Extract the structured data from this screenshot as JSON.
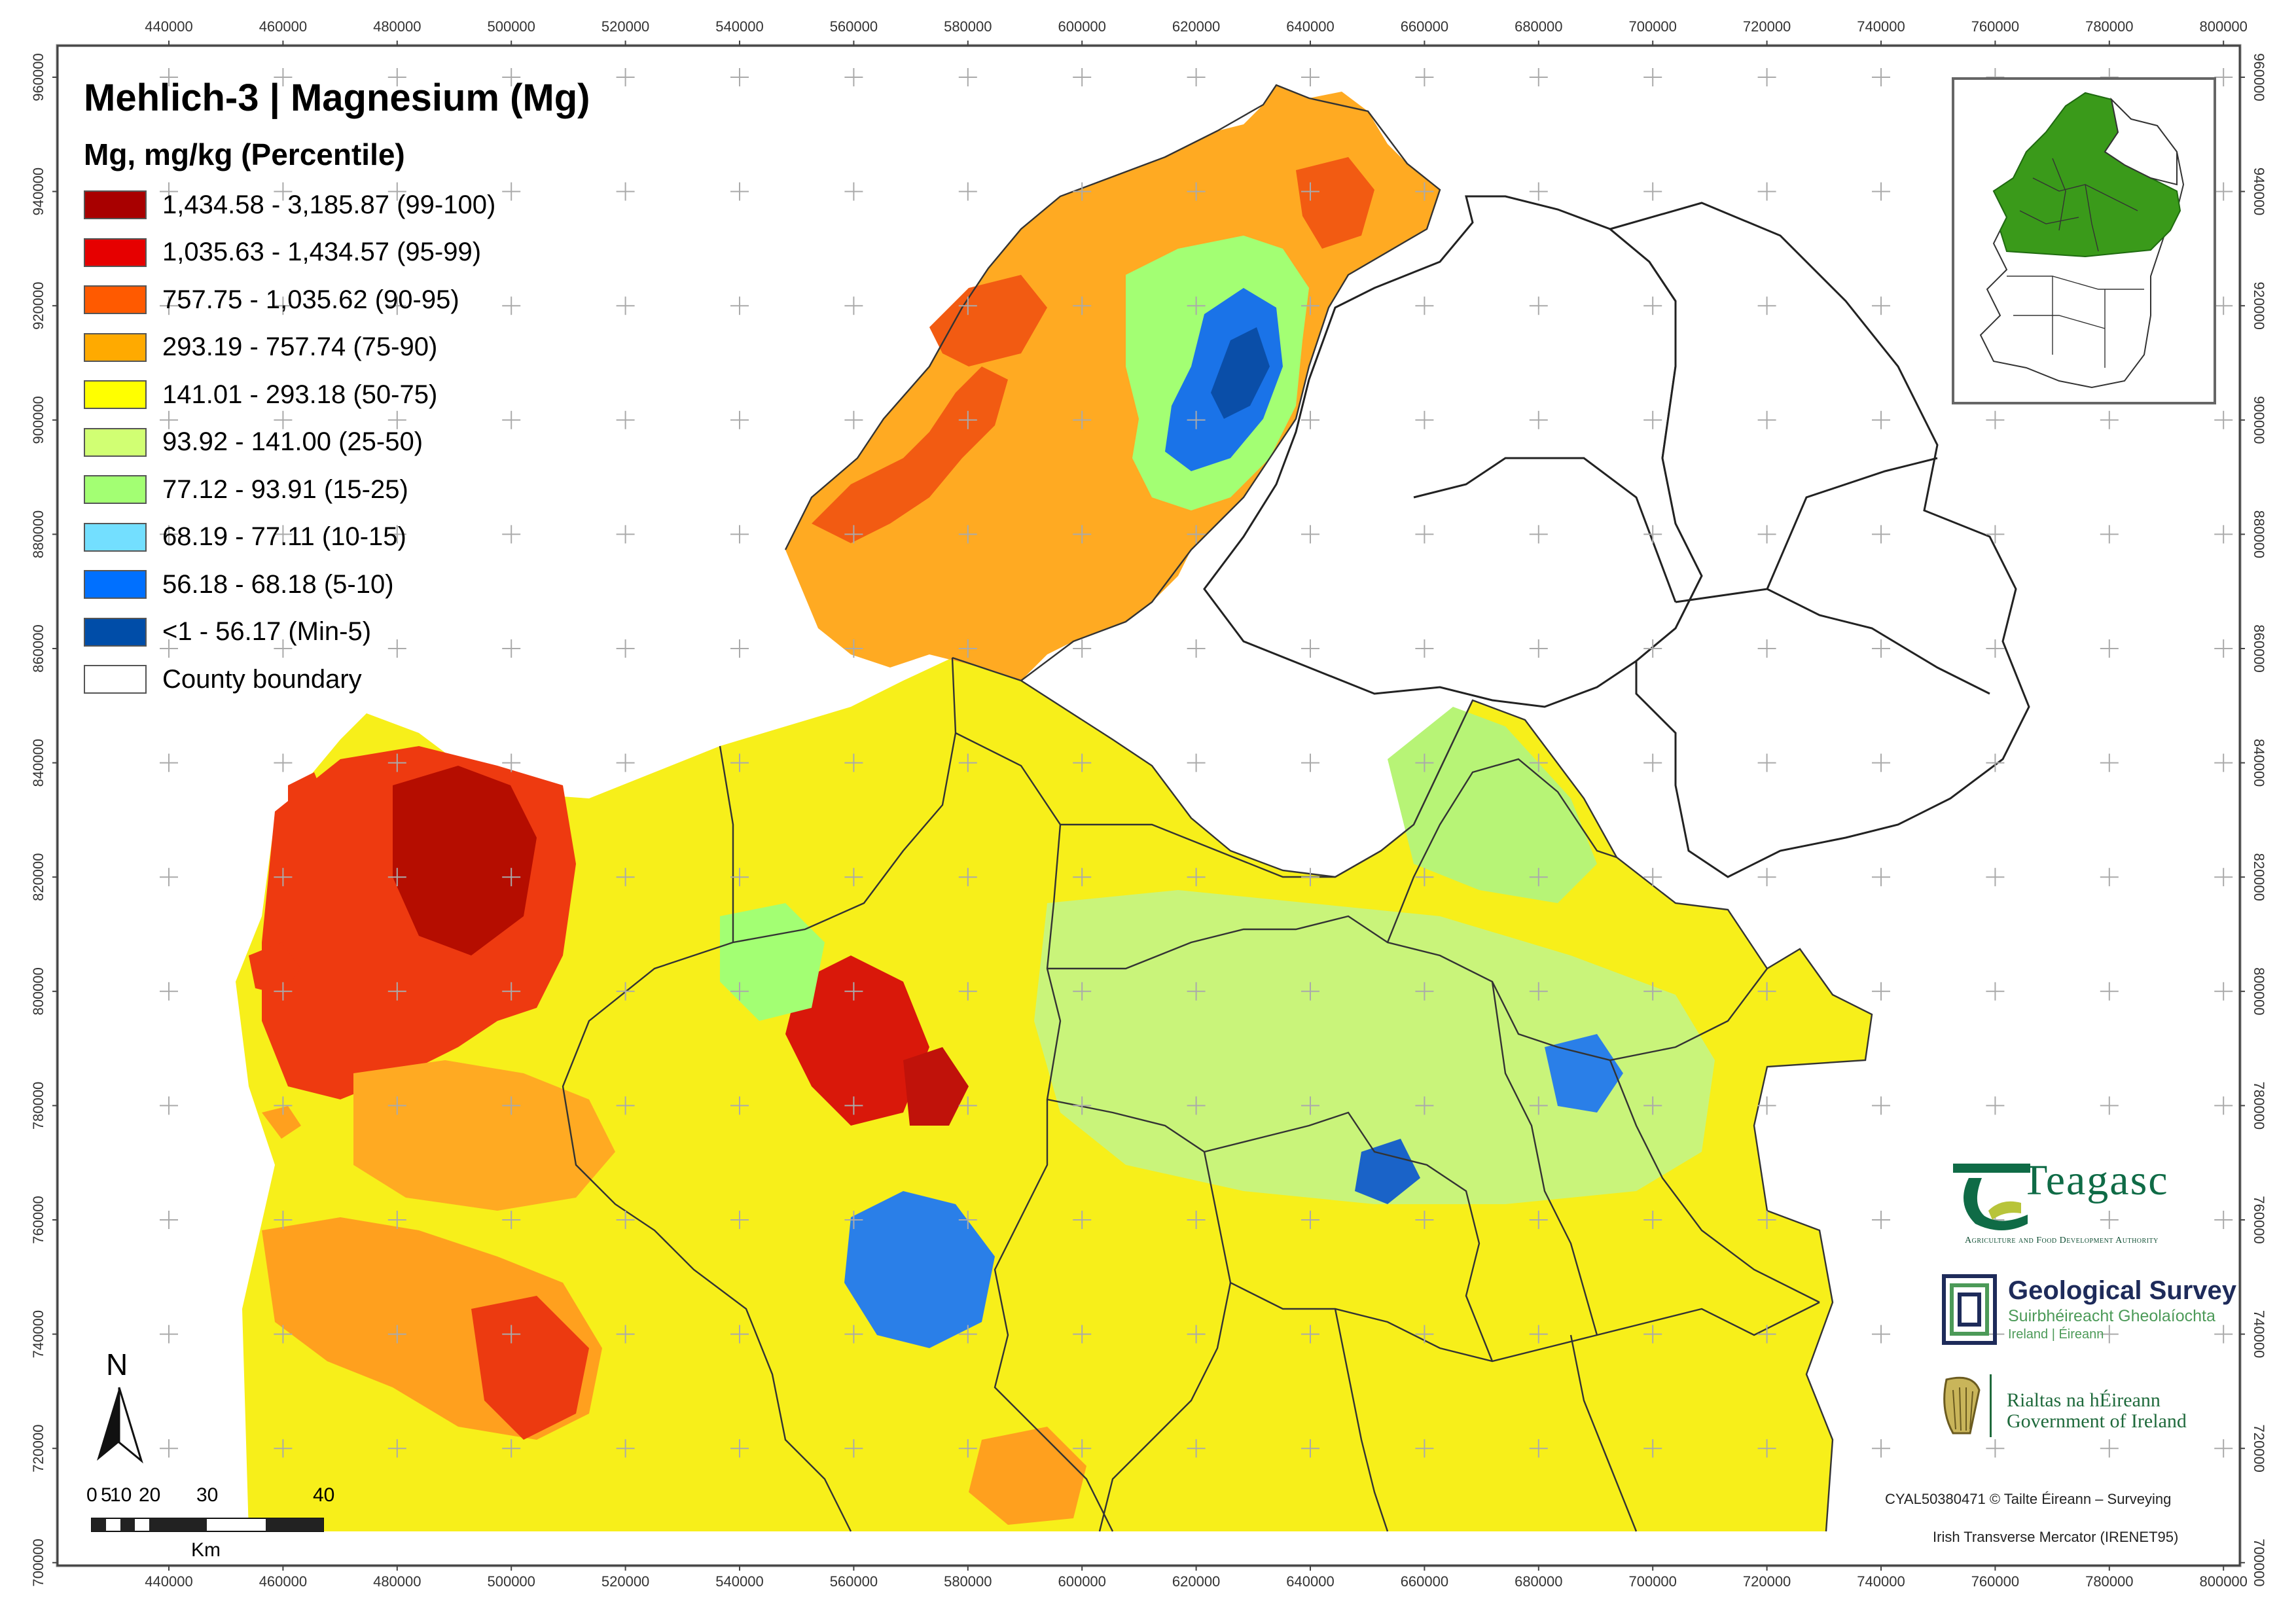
{
  "map": {
    "title": "Mehlich-3 | Magnesium (Mg)",
    "subtitle": "Mg, mg/kg (Percentile)",
    "legend": [
      {
        "label": "1,434.58 - 3,185.87 (99-100)",
        "color": "#a80000"
      },
      {
        "label": "1,035.63 - 1,434.57 (95-99)",
        "color": "#e60000"
      },
      {
        "label": "757.75 - 1,035.62 (90-95)",
        "color": "#ff5a00"
      },
      {
        "label": "293.19 - 757.74 (75-90)",
        "color": "#ffaa00"
      },
      {
        "label": "141.01 - 293.18 (50-75)",
        "color": "#ffff00"
      },
      {
        "label": "93.92 - 141.00 (25-50)",
        "color": "#d1ff73"
      },
      {
        "label": "77.12 - 93.91 (15-25)",
        "color": "#a3ff73"
      },
      {
        "label": "68.19 - 77.11 (10-15)",
        "color": "#73dfff"
      },
      {
        "label": "56.18 - 68.18 (5-10)",
        "color": "#0070ff"
      },
      {
        "label": "<1 - 56.17 (Min-5)",
        "color": "#004da8"
      },
      {
        "label": "County boundary",
        "color": "#ffffff"
      }
    ],
    "x_ticks": [
      "440000",
      "460000",
      "480000",
      "500000",
      "520000",
      "540000",
      "560000",
      "580000",
      "600000",
      "620000",
      "640000",
      "660000",
      "680000",
      "700000",
      "720000",
      "740000",
      "760000",
      "780000",
      "800000"
    ],
    "y_ticks": [
      "960000",
      "940000",
      "920000",
      "900000",
      "880000",
      "860000",
      "840000",
      "820000",
      "800000",
      "780000",
      "760000",
      "740000",
      "720000",
      "700000"
    ],
    "north_label": "N",
    "scale": {
      "labels": [
        "0",
        "5",
        "10",
        "20",
        "30",
        "40"
      ],
      "unit": "Km"
    },
    "inset_highlight_color": "#3a9a1a"
  },
  "logos": {
    "teagasc": {
      "name": "Teagasc",
      "tagline": "Agriculture and Food Development Authority"
    },
    "gsi": {
      "title": "Geological Survey",
      "irish": "Suirbhéireacht Gheolaíochta",
      "sub": "Ireland | Éireann"
    },
    "gov": {
      "irish": "Rialtas na hÉireann",
      "english": "Government of Ireland"
    }
  },
  "credits": {
    "copyright": "CYAL50380471 © Tailte Éireann – Surveying",
    "projection": "Irish Transverse Mercator (IRENET95)"
  }
}
